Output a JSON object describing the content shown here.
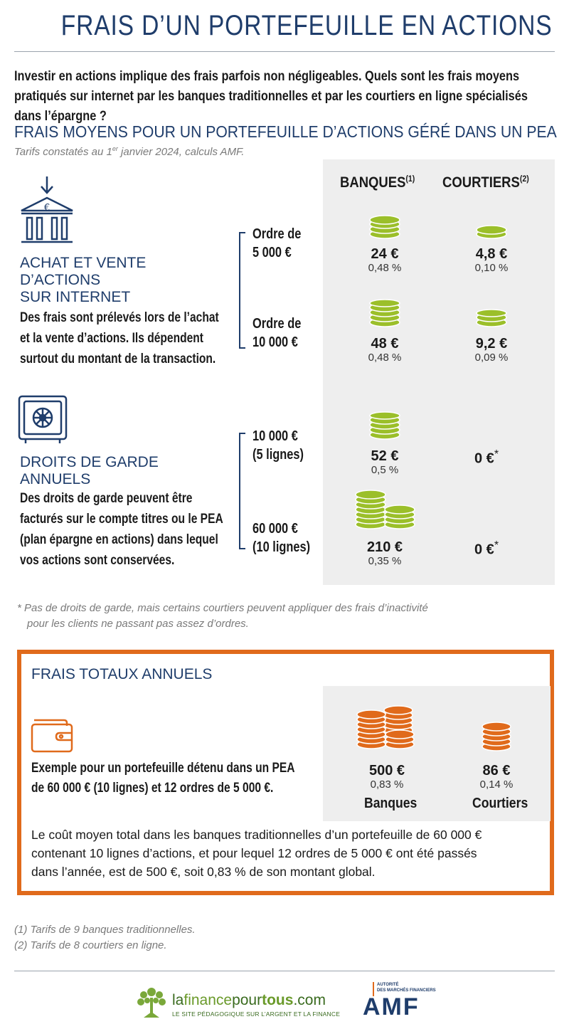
{
  "title": "FRAIS D’UN PORTEFEUILLE EN ACTIONS",
  "intro": "Investir en actions implique des frais parfois non négligeables. Quels sont les frais moyens pratiqués sur internet par les banques traditionnelles et par les courtiers en ligne spécialisés dans l’épargne ?",
  "section_title": "FRAIS MOYENS POUR UN PORTEFEUILLE D’ACTIONS GÉRÉ DANS UN PEA",
  "tariff_note": {
    "pre": "Tarifs constatés au 1",
    "sup": "er",
    "post": " janvier 2024, calculs AMF."
  },
  "columns": {
    "banks": {
      "label": "BANQUES",
      "note": "(1)"
    },
    "brokers": {
      "label": "COURTIERS",
      "note": "(2)"
    }
  },
  "trading": {
    "title_lines": [
      "ACHAT ET VENTE",
      "D’ACTIONS",
      "SUR INTERNET"
    ],
    "desc_lines": [
      "Des frais sont prélevés lors de l’achat",
      "et la vente d’actions. Ils dépendent",
      "surtout du montant de la transaction."
    ],
    "rows": [
      {
        "label_lines": [
          "Ordre de",
          "5 000 €"
        ],
        "bank_value": "24 €",
        "bank_pct": "0,48 %",
        "broker_value": "4,8 €",
        "broker_pct": "0,10 %"
      },
      {
        "label_lines": [
          "Ordre de",
          "10 000 €"
        ],
        "bank_value": "48 €",
        "bank_pct": "0,48 %",
        "broker_value": "9,2 €",
        "broker_pct": "0,09 %"
      }
    ]
  },
  "custody": {
    "title_lines": [
      "DROITS DE GARDE",
      "ANNUELS"
    ],
    "desc_lines": [
      "Des droits de garde peuvent être",
      "facturés sur le compte titres ou le PEA",
      "(plan épargne en actions) dans lequel",
      "vos actions sont conservées."
    ],
    "rows": [
      {
        "label_lines": [
          "10 000 €",
          "(5 lignes)"
        ],
        "bank_value": "52 €",
        "bank_pct": "0,5 %",
        "broker_value": "0 €",
        "broker_mark": "*"
      },
      {
        "label_lines": [
          "60 000 €",
          "(10 lignes)"
        ],
        "bank_value": "210 €",
        "bank_pct": "0,35 %",
        "broker_value": "0 €",
        "broker_mark": "*"
      }
    ]
  },
  "asterisk_note_lines": [
    "* Pas de droits de garde, mais certains courtiers peuvent appliquer des frais d’inactivité",
    "pour les clients ne passant pas assez d’ordres."
  ],
  "total": {
    "title": "FRAIS TOTAUX ANNUELS",
    "example_lines": [
      "Exemple pour un portefeuille détenu dans un PEA",
      "de 60 000 € (10 lignes) et 12 ordres de 5 000 €."
    ],
    "bank_value": "500 €",
    "bank_pct": "0,83 %",
    "bank_label": "Banques",
    "broker_value": "86 €",
    "broker_pct": "0,14 %",
    "broker_label": "Courtiers",
    "summary_lines": [
      "Le coût moyen total dans les banques traditionnelles d’un portefeuille de 60 000 €",
      "contenant 10 lignes d’actions, et pour lequel 12 ordres de 5 000 € ont été passés",
      "dans l’année, est de 500 €, soit 0,83 % de son montant global."
    ]
  },
  "footnotes": [
    "(1) Tarifs de 9 banques traditionnelles.",
    "(2) Tarifs de 8 courtiers en ligne."
  ],
  "logos": {
    "lfpt_name": {
      "a": "la",
      "b": "finance",
      "c": "pour",
      "d": "tous",
      "e": ".com"
    },
    "lfpt_tagline": "LE SITE PÉDAGOGIQUE SUR L’ARGENT ET LA FINANCE",
    "amf_small_1": "AUTORITÉ",
    "amf_small_2": "DES MARCHÉS FINANCIERS",
    "amf_word": "AMF"
  },
  "colors": {
    "navy": "#1f3d6b",
    "orange": "#e06a1b",
    "green": "#9bbf2a",
    "panel": "#eeeeee"
  },
  "icons": [
    "bank-icon",
    "safe-icon",
    "wallet-icon",
    "coin-stack-icon",
    "tree-logo-icon"
  ]
}
